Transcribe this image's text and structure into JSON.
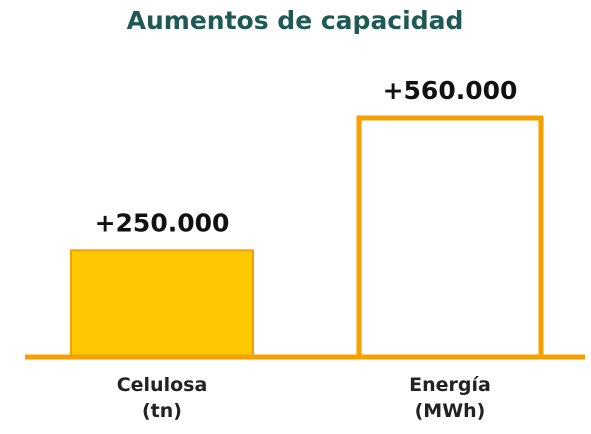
{
  "chart_data": {
    "type": "bar",
    "title": "Aumentos de capacidad",
    "categories": [
      "Celulosa\n(tn)",
      "Energía\n(MWh)"
    ],
    "values": [
      250000,
      560000
    ],
    "value_labels": [
      "+250.000",
      "+560.000"
    ],
    "colors": [
      "#ffc800",
      "#ffffff"
    ],
    "edge_color": "#f5a000",
    "title_color": "#1e5a55"
  }
}
